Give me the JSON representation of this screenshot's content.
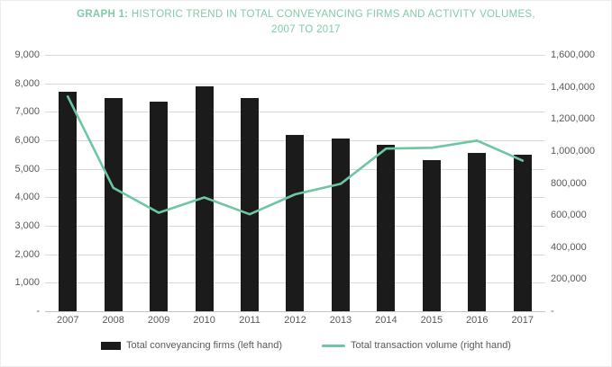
{
  "figure": {
    "title": {
      "bold": "GRAPH 1:",
      "line1": " HISTORIC TREND IN TOTAL CONVEYANCING FIRMS AND ACTIVITY VOLUMES,",
      "line2": "2007 TO 2017",
      "color": "#7fcba9"
    }
  },
  "chart_data": {
    "type": "combo",
    "title": "GRAPH 1: HISTORIC TREND IN TOTAL CONVEYANCING FIRMS AND ACTIVITY VOLUMES, 2007 TO 2017",
    "categories": [
      "2007",
      "2008",
      "2009",
      "2010",
      "2011",
      "2012",
      "2013",
      "2014",
      "2015",
      "2016",
      "2017"
    ],
    "series": [
      {
        "name": "Total conveyancing firms (left hand)",
        "type": "bar",
        "axis": "left",
        "color": "#1b1b1b",
        "values": [
          7700,
          7500,
          7350,
          7900,
          7500,
          6200,
          6050,
          5850,
          5300,
          5550,
          5500
        ]
      },
      {
        "name": "Total transaction volume (right hand)",
        "type": "line",
        "axis": "right",
        "color": "#6ec6a2",
        "values": [
          1340000,
          770000,
          615000,
          710000,
          605000,
          730000,
          795000,
          1015000,
          1020000,
          1065000,
          940000
        ]
      }
    ],
    "left_axis": {
      "min": 0,
      "max": 9000,
      "step": 1000,
      "tick_labels": [
        "9,000",
        "8,000",
        "7,000",
        "6,000",
        "5,000",
        "4,000",
        "3,000",
        "2,000",
        "1,000",
        "-"
      ]
    },
    "right_axis": {
      "min": 0,
      "max": 1600000,
      "step": 200000,
      "tick_labels": [
        "1,600,000",
        "1,400,000",
        "1,200,000",
        "1,000,000",
        "800,000",
        "600,000",
        "400,000",
        "200,000",
        "-"
      ]
    },
    "grid": true,
    "legend_position": "bottom",
    "bar_color": "#1b1b1b",
    "line_color": "#6ec6a2",
    "grid_color": "#d9d9d9",
    "axis_text_color": "#595959"
  }
}
